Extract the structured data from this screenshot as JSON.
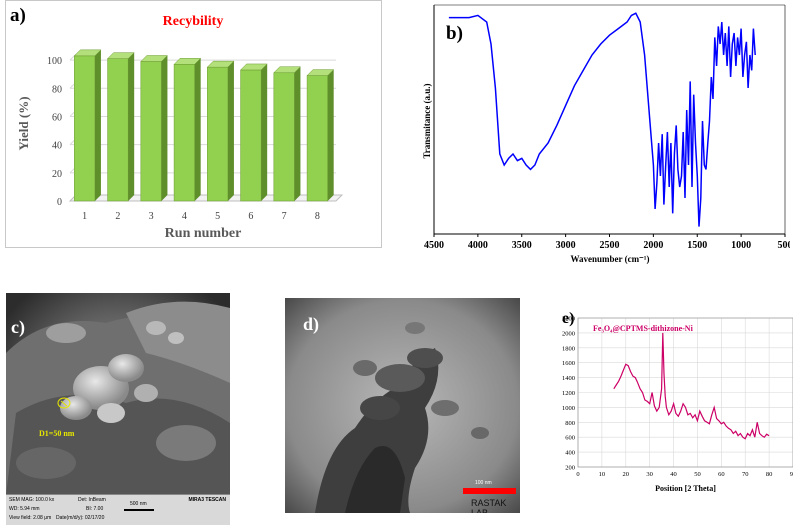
{
  "panel_labels": {
    "a": "a)",
    "b": "b)",
    "c": "c)",
    "d": "d)",
    "e": "e)"
  },
  "colors": {
    "bar_green": "#92d050",
    "ftir_blue": "#0000ff",
    "xrd_magenta": "#cc0066",
    "title_red": "#ff0000"
  },
  "chart_data": [
    {
      "id": "a",
      "type": "bar",
      "title": "Recybility",
      "xlabel": "Run number",
      "ylabel": "Yield (%)",
      "categories": [
        "1",
        "2",
        "3",
        "4",
        "5",
        "6",
        "7",
        "8"
      ],
      "values": [
        103,
        101,
        99,
        97,
        95,
        93,
        91,
        89
      ],
      "yticks": [
        "0",
        "20",
        "40",
        "60",
        "80",
        "100"
      ],
      "ylim": [
        0,
        110
      ],
      "grid": true,
      "style": "3d"
    },
    {
      "id": "b",
      "type": "line",
      "title": "",
      "xlabel": "Wavenumber (cm⁻¹)",
      "ylabel": "Transmitance (a.u.)",
      "xticks": [
        "4500",
        "4000",
        "3500",
        "3000",
        "2500",
        "2000",
        "1500",
        "1000",
        "500"
      ],
      "xlim": [
        4500,
        500
      ],
      "x_reversed": true,
      "y_units": "arbitrary",
      "x": [
        4330,
        4200,
        4100,
        4000,
        3900,
        3850,
        3800,
        3750,
        3700,
        3650,
        3600,
        3550,
        3500,
        3450,
        3400,
        3350,
        3300,
        3200,
        3100,
        3000,
        2900,
        2800,
        2700,
        2600,
        2500,
        2400,
        2300,
        2250,
        2200,
        2150,
        2100,
        2050,
        2000,
        1980,
        1960,
        1940,
        1920,
        1900,
        1880,
        1860,
        1840,
        1820,
        1800,
        1780,
        1760,
        1740,
        1720,
        1700,
        1680,
        1660,
        1640,
        1620,
        1600,
        1580,
        1560,
        1540,
        1520,
        1500,
        1480,
        1460,
        1440,
        1420,
        1400,
        1380,
        1360,
        1340,
        1320,
        1300,
        1280,
        1260,
        1240,
        1220,
        1200,
        1180,
        1160,
        1140,
        1120,
        1100,
        1080,
        1060,
        1040,
        1020,
        1000,
        980,
        960,
        940,
        920,
        900,
        880,
        860,
        840
      ],
      "y": [
        97,
        97,
        97,
        98,
        95,
        85,
        65,
        35,
        30,
        33,
        35,
        32,
        33,
        30,
        28,
        30,
        35,
        40,
        48,
        57,
        66,
        73,
        80,
        85,
        89,
        92,
        95,
        98,
        99,
        95,
        80,
        55,
        30,
        10,
        22,
        40,
        25,
        44,
        12,
        30,
        45,
        20,
        40,
        8,
        35,
        48,
        28,
        20,
        25,
        45,
        15,
        55,
        30,
        68,
        20,
        62,
        40,
        25,
        2,
        15,
        50,
        30,
        28,
        40,
        50,
        70,
        60,
        88,
        75,
        93,
        85,
        95,
        80,
        90,
        75,
        93,
        70,
        85,
        90,
        75,
        88,
        80,
        92,
        70,
        80,
        86,
        65,
        80,
        73,
        92,
        80
      ],
      "grid": false
    },
    {
      "id": "e",
      "type": "line",
      "title": "Fe₃O₄@CPTMS-dithizone-Ni",
      "xlabel": "Position [2 Theta]",
      "ylabel": "",
      "xticks": [
        "0",
        "10",
        "20",
        "30",
        "40",
        "50",
        "60",
        "70",
        "80",
        "90"
      ],
      "yticks": [
        "200",
        "400",
        "600",
        "800",
        "1000",
        "1200",
        "1400",
        "1600",
        "1800",
        "2000",
        "2200"
      ],
      "xlim": [
        0,
        90
      ],
      "ylim": [
        200,
        2200
      ],
      "x": [
        15,
        16,
        17,
        18,
        19,
        20,
        21,
        22,
        23,
        24,
        25,
        26,
        27,
        28,
        29,
        30,
        31,
        32,
        33,
        34,
        35,
        35.5,
        36,
        36.5,
        37,
        38,
        39,
        40,
        41,
        42,
        43,
        44,
        45,
        46,
        47,
        48,
        49,
        50,
        51,
        52,
        53,
        54,
        55,
        56,
        57,
        58,
        59,
        60,
        61,
        62,
        63,
        64,
        65,
        66,
        67,
        68,
        69,
        70,
        71,
        72,
        73,
        74,
        75,
        76,
        77,
        78,
        79,
        80
      ],
      "y": [
        1250,
        1300,
        1350,
        1420,
        1500,
        1580,
        1560,
        1480,
        1420,
        1400,
        1330,
        1250,
        1200,
        1100,
        1080,
        1050,
        1200,
        1020,
        950,
        1000,
        1250,
        2000,
        1450,
        1150,
        1000,
        900,
        950,
        1050,
        920,
        880,
        950,
        1050,
        1000,
        900,
        920,
        860,
        900,
        820,
        950,
        880,
        820,
        800,
        780,
        900,
        1000,
        850,
        820,
        780,
        800,
        750,
        720,
        700,
        650,
        680,
        620,
        650,
        600,
        580,
        650,
        620,
        700,
        600,
        800,
        650,
        620,
        600,
        640,
        620
      ],
      "grid": true
    }
  ],
  "sem": {
    "annotation": "D1=50 nm",
    "footer": {
      "mag": "SEM MAG: 100.0 kx",
      "det": "Det: InBeam",
      "scale": "500 nm",
      "wd": "WD: 5.94 mm",
      "bi": "BI: 7.00",
      "view": "View field: 2.08 μm",
      "date": "Date(m/d/y): 02/17/20",
      "brand": "MIRA3 TESCAN"
    }
  },
  "tem": {
    "scale": "100 nm",
    "watermark": "RASTAK LAB"
  }
}
